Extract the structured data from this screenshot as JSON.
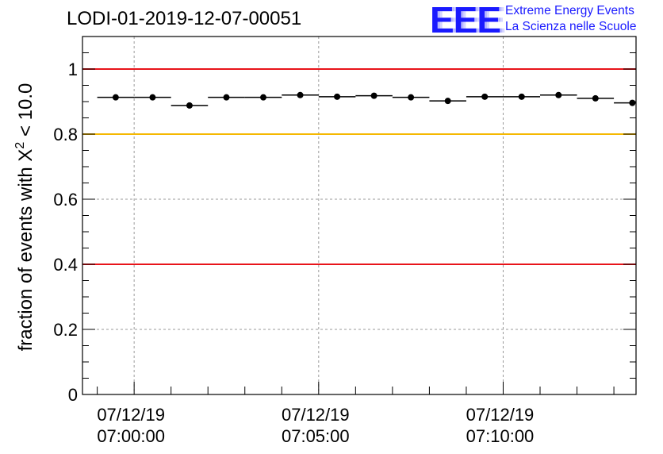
{
  "run_title": "LODI-01-2019-12-07-00051",
  "logo": {
    "mark": "EEE",
    "line1": "Extreme Energy Events",
    "line2": "La Scienza nelle Scuole",
    "color": "#1a1aff"
  },
  "chart_data": {
    "type": "scatter",
    "title": "LODI-01-2019-12-07-00051",
    "ylabel_main": "fraction of events with Χ",
    "ylabel_sup": "2",
    "ylabel_tail": " < 10.0",
    "ylim": [
      0,
      1.1
    ],
    "xlim_minutes": [
      -1.4,
      13.6
    ],
    "grid": true,
    "y_ticks": [
      {
        "value": 0,
        "label": "0"
      },
      {
        "value": 0.2,
        "label": "0.2"
      },
      {
        "value": 0.4,
        "label": "0.4"
      },
      {
        "value": 0.6,
        "label": "0.6"
      },
      {
        "value": 0.8,
        "label": "0.8"
      },
      {
        "value": 1,
        "label": "1"
      }
    ],
    "x_ticks": [
      {
        "minute": 0,
        "date": "07/12/19",
        "time": "07:00:00"
      },
      {
        "minute": 5,
        "date": "07/12/19",
        "time": "07:05:00"
      },
      {
        "minute": 10,
        "date": "07/12/19",
        "time": "07:10:00"
      }
    ],
    "reference_lines": [
      {
        "y": 1.0,
        "color": "#e8141a"
      },
      {
        "y": 0.8,
        "color": "#f5b800"
      },
      {
        "y": 0.4,
        "color": "#e8141a"
      }
    ],
    "bin_width_minutes": 1,
    "series": [
      {
        "name": "fraction",
        "x_minutes": [
          -0.5,
          0.5,
          1.5,
          2.5,
          3.5,
          4.5,
          5.5,
          6.5,
          7.5,
          8.5,
          9.5,
          10.5,
          11.5,
          12.5,
          13.5
        ],
        "values": [
          0.913,
          0.913,
          0.888,
          0.913,
          0.913,
          0.92,
          0.915,
          0.918,
          0.913,
          0.902,
          0.915,
          0.915,
          0.92,
          0.91,
          0.896
        ]
      }
    ]
  }
}
